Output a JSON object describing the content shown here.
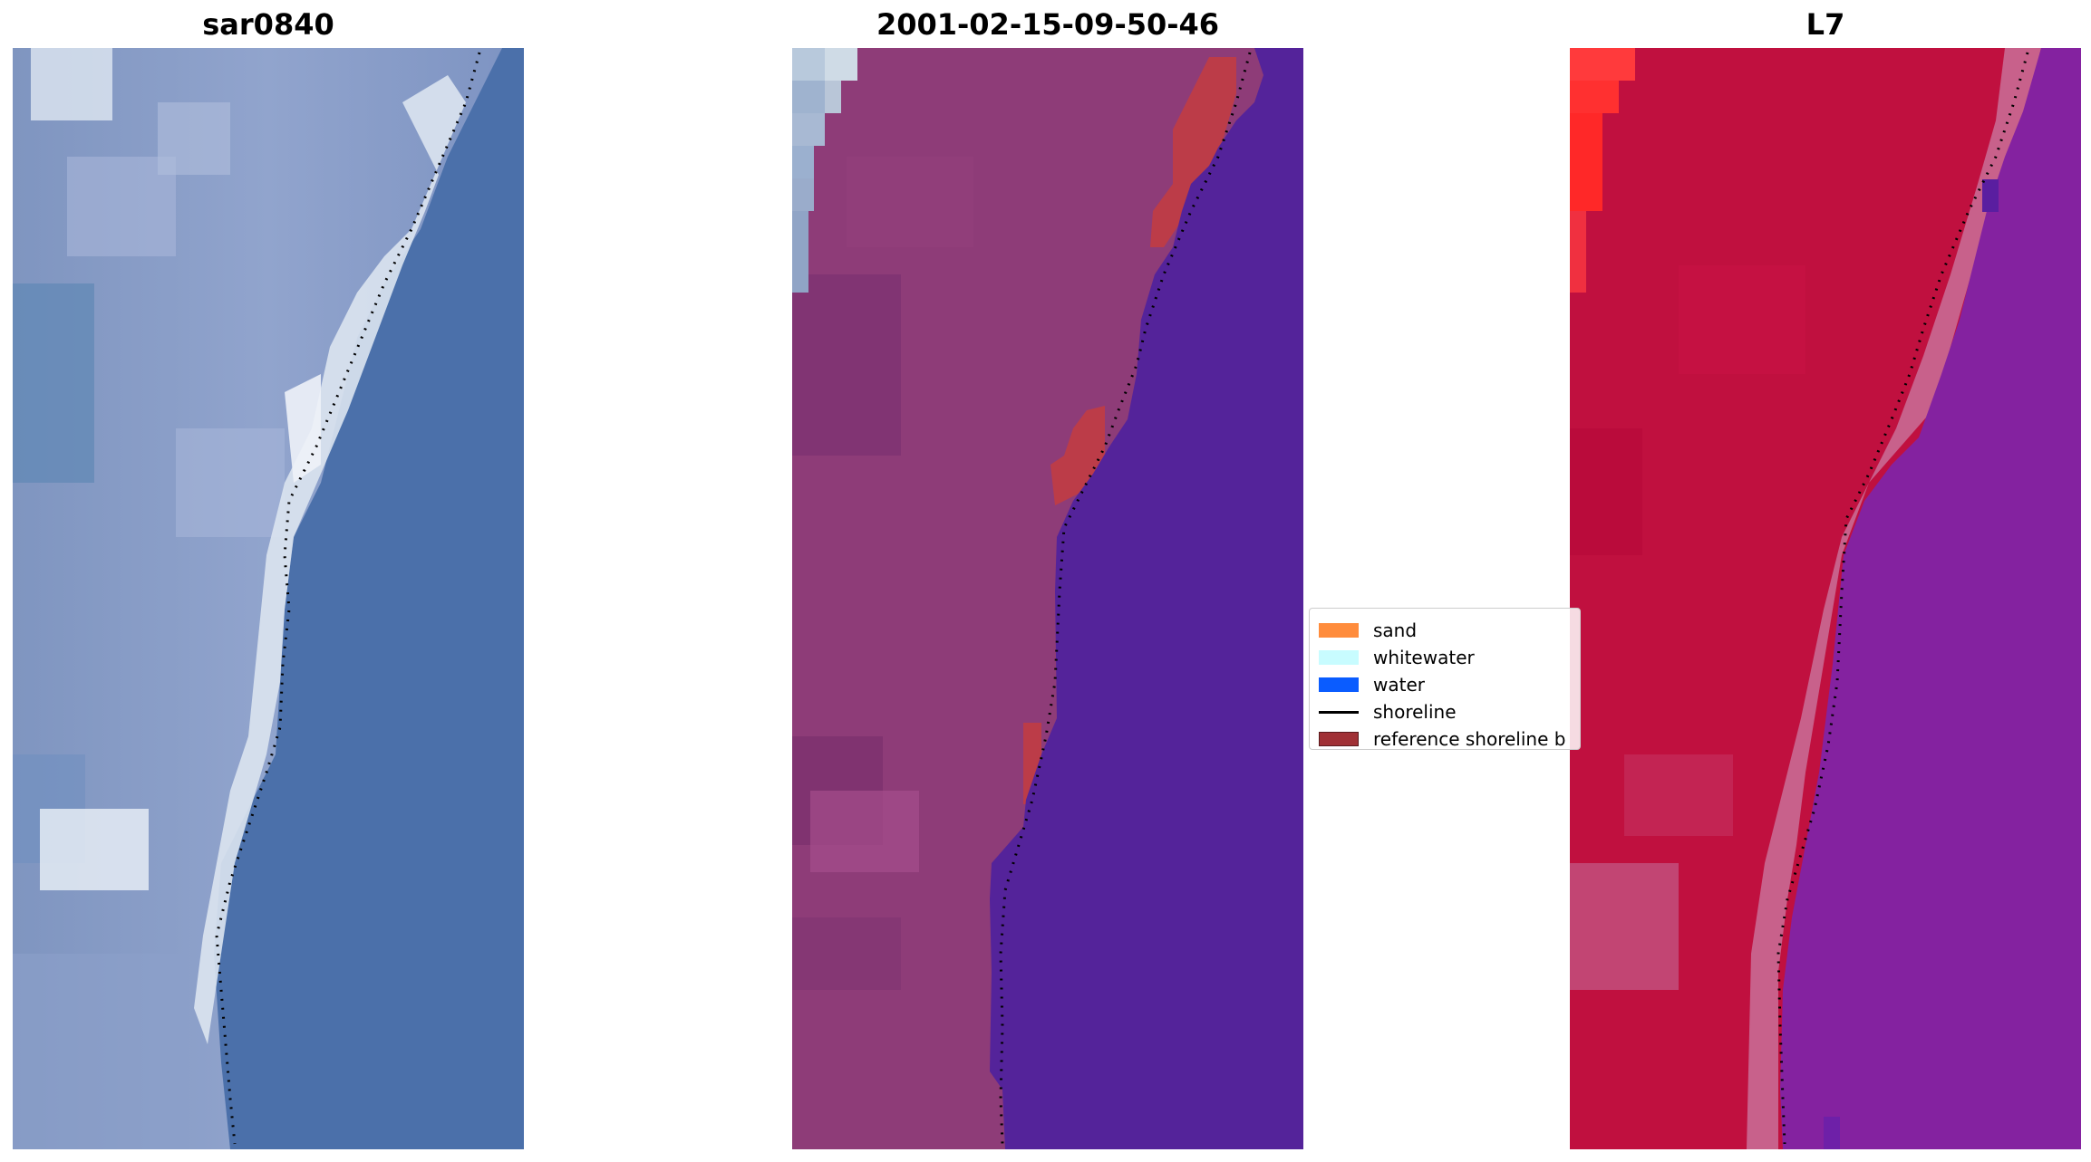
{
  "panels": [
    {
      "title": "sar0840"
    },
    {
      "title": "2001-02-15-09-50-46"
    },
    {
      "title": "L7"
    }
  ],
  "legend": {
    "items": [
      {
        "label": "sand",
        "color": "#ff8c3c"
      },
      {
        "label": "whitewater",
        "color": "#c8fcff"
      },
      {
        "label": "water",
        "color": "#0a5cff"
      },
      {
        "label": "shoreline",
        "color": "#000000"
      },
      {
        "label": "reference shoreline b",
        "color": "#a03035"
      }
    ]
  }
}
